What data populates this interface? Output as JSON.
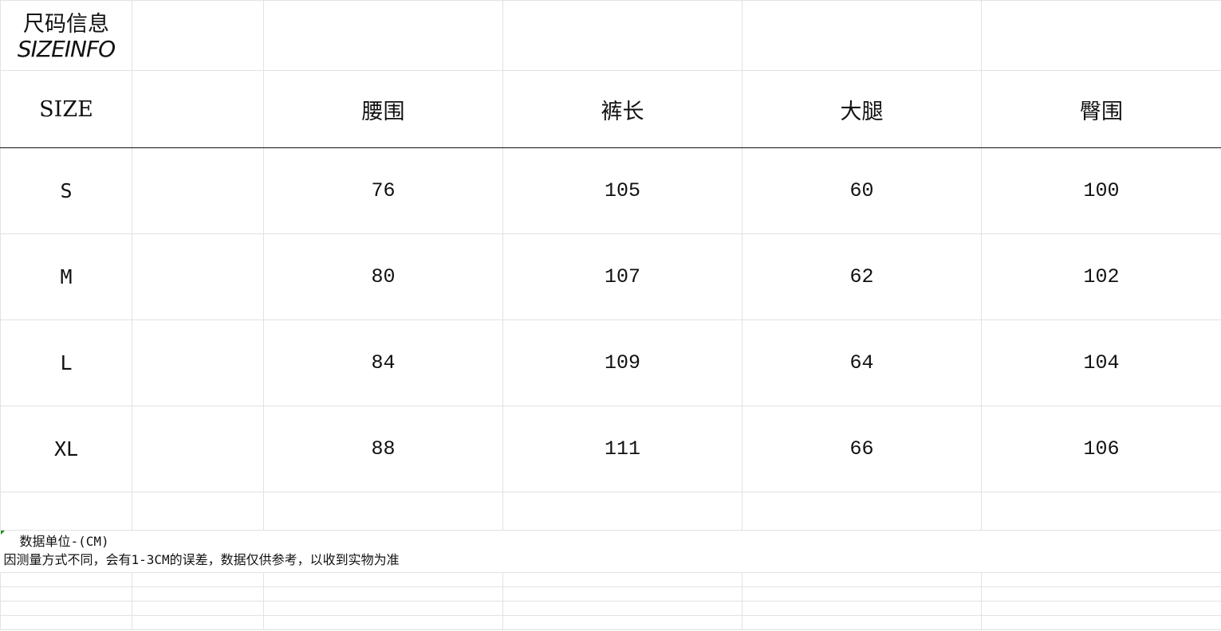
{
  "title": {
    "zh": "尺码信息",
    "en": "SIZEINFO"
  },
  "header": {
    "size_label": "SIZE",
    "columns": [
      "腰围",
      "裤长",
      "大腿",
      "臀围"
    ]
  },
  "rows": [
    {
      "size": "S",
      "values": [
        "76",
        "105",
        "60",
        "100"
      ]
    },
    {
      "size": "M",
      "values": [
        "80",
        "107",
        "62",
        "102"
      ]
    },
    {
      "size": "L",
      "values": [
        "84",
        "109",
        "64",
        "104"
      ]
    },
    {
      "size": "XL",
      "values": [
        "88",
        "111",
        "66",
        "106"
      ]
    }
  ],
  "notes": {
    "unit": "数据单位-(CM)",
    "disclaimer": "因测量方式不同，会有1-3CM的误差，数据仅供参考，以收到实物为准"
  }
}
